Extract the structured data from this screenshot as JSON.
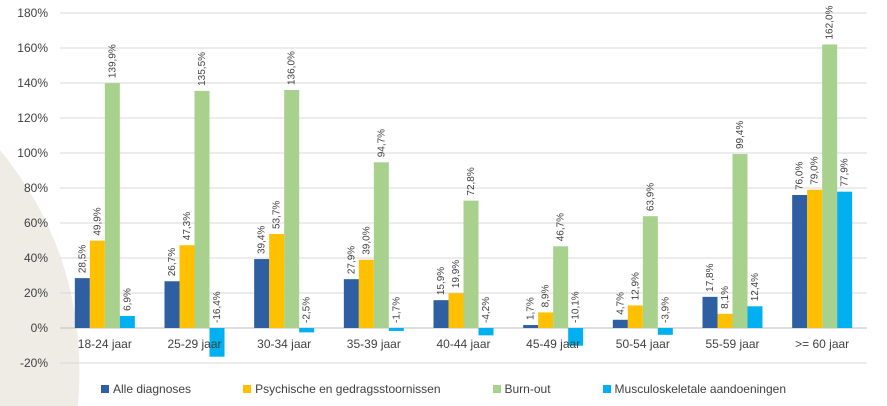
{
  "chart_data": {
    "type": "bar",
    "title": "",
    "xlabel": "",
    "ylabel": "",
    "ylim": [
      -20,
      180
    ],
    "yticks": [
      -20,
      0,
      20,
      40,
      60,
      80,
      100,
      120,
      140,
      160,
      180
    ],
    "ytick_labels": [
      "-20%",
      "0%",
      "20%",
      "40%",
      "60%",
      "80%",
      "100%",
      "120%",
      "140%",
      "160%",
      "180%"
    ],
    "grid": true,
    "legend_position": "bottom",
    "categories": [
      "18-24 jaar",
      "25-29 jaar",
      "30-34 jaar",
      "35-39 jaar",
      "40-44 jaar",
      "45-49 jaar",
      "50-54 jaar",
      "55-59 jaar",
      ">= 60 jaar"
    ],
    "series": [
      {
        "name": "Alle diagnoses",
        "color": "#2E5FA3",
        "values": [
          28.5,
          26.7,
          39.4,
          27.9,
          15.9,
          1.7,
          4.7,
          17.8,
          76.0
        ],
        "labels": [
          "28,5%",
          "26,7%",
          "39,4%",
          "27,9%",
          "15,9%",
          "1,7%",
          "4,7%",
          "17,8%",
          "76,0%"
        ]
      },
      {
        "name": "Psychische en gedragsstoornissen",
        "color": "#FFC000",
        "values": [
          49.9,
          47.3,
          53.7,
          39.0,
          19.9,
          8.9,
          12.9,
          8.1,
          79.0
        ],
        "labels": [
          "49,9%",
          "47,3%",
          "53,7%",
          "39,0%",
          "19,9%",
          "8,9%",
          "12,9%",
          "8,1%",
          "79,0%"
        ]
      },
      {
        "name": "Burn-out",
        "color": "#A9D18E",
        "values": [
          139.9,
          135.5,
          136.0,
          94.7,
          72.8,
          46.7,
          63.9,
          99.4,
          162.0
        ],
        "labels": [
          "139,9%",
          "135,5%",
          "136,0%",
          "94,7%",
          "72,8%",
          "46,7%",
          "63,9%",
          "99,4%",
          "162,0%"
        ]
      },
      {
        "name": "Musculoskeletale aandoeningen",
        "color": "#00B0F0",
        "values": [
          6.9,
          -16.4,
          -2.5,
          -1.7,
          -4.2,
          -10.1,
          -3.9,
          12.4,
          77.9
        ],
        "labels": [
          "6,9%",
          "-16,4%",
          "-2,5%",
          "-1,7%",
          "-4,2%",
          "-10,1%",
          "-3,9%",
          "12,4%",
          "77,9%"
        ]
      }
    ]
  },
  "colors": {
    "background_arc": "#E8E4DC",
    "gridline": "#D9D9D9",
    "axis_text": "#404040"
  }
}
